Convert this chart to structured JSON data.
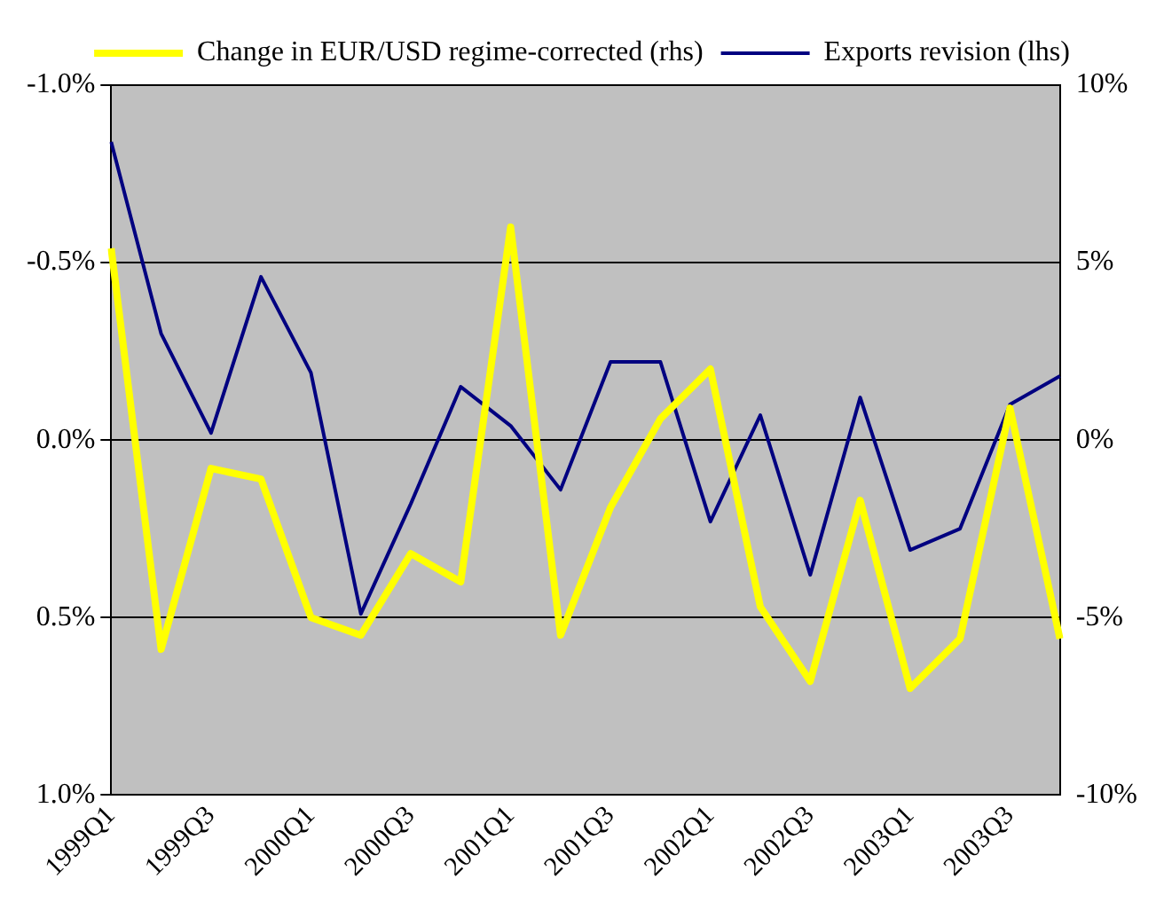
{
  "chart_data": {
    "type": "line",
    "categories": [
      "1999Q1",
      null,
      "1999Q3",
      null,
      "2000Q1",
      null,
      "2000Q3",
      null,
      "2001Q1",
      null,
      "2001Q3",
      null,
      "2002Q1",
      null,
      "2002Q3",
      null,
      "2003Q1",
      null,
      "2003Q3",
      null
    ],
    "series": [
      {
        "name": "Exports revision (lhs)",
        "color": "#000080",
        "values": [
          -0.84,
          -0.3,
          -0.02,
          -0.46,
          -0.19,
          0.49,
          0.18,
          -0.15,
          -0.04,
          0.14,
          -0.22,
          -0.22,
          0.23,
          -0.07,
          0.38,
          -0.12,
          0.31,
          0.25,
          -0.1,
          -0.18
        ]
      },
      {
        "name": "Change in EUR/USD regime-corrected (rhs)",
        "color": "#ffff00",
        "axis": "y2",
        "values": [
          5.4,
          -5.9,
          -0.8,
          -1.1,
          -5.0,
          -5.5,
          -3.2,
          -4.0,
          6.0,
          -5.5,
          -1.9,
          0.6,
          2.0,
          -4.7,
          -6.8,
          -1.7,
          -7.0,
          -5.6,
          0.9,
          -5.6
        ]
      }
    ],
    "ylim": [
      1.0,
      -1.0
    ],
    "yticks": [
      {
        "value": -1.0,
        "label": "-1.0%"
      },
      {
        "value": -0.5,
        "label": "-0.5%"
      },
      {
        "value": 0,
        "label": "0.0%"
      },
      {
        "value": 0.5,
        "label": "0.5%"
      },
      {
        "value": 1.0,
        "label": "1.0%"
      }
    ],
    "y2lim": [
      -10,
      10
    ],
    "y2ticks": [
      {
        "value": -10,
        "label": "-10%"
      },
      {
        "value": -5,
        "label": "-5%"
      },
      {
        "value": 0,
        "label": "0%"
      },
      {
        "value": 5,
        "label": "5%"
      },
      {
        "value": 10,
        "label": "10%"
      }
    ],
    "grid": "y",
    "legend": "top",
    "marker": "none"
  }
}
